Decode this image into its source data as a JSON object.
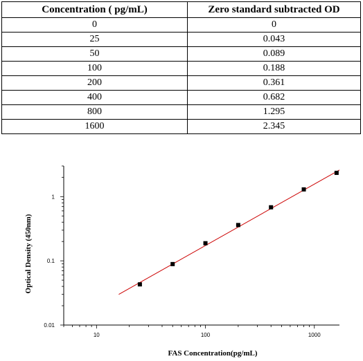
{
  "table": {
    "headers": [
      "Concentration ( pg/mL)",
      "Zero standard subtracted OD"
    ],
    "rows": [
      [
        "0",
        "0"
      ],
      [
        "25",
        "0.043"
      ],
      [
        "50",
        "0.089"
      ],
      [
        "100",
        "0.188"
      ],
      [
        "200",
        "0.361"
      ],
      [
        "400",
        "0.682"
      ],
      [
        "800",
        "1.295"
      ],
      [
        "1600",
        "2.345"
      ]
    ]
  },
  "chart_data": {
    "type": "scatter",
    "xlabel": "FAS  Concentration(pg/mL)",
    "ylabel": "Optical Density (450nm)",
    "x_scale": "log",
    "y_scale": "log",
    "xlim": [
      5,
      1700
    ],
    "ylim": [
      0.01,
      3
    ],
    "x_ticks": [
      {
        "value": 10,
        "label": "10"
      },
      {
        "value": 100,
        "label": "100"
      },
      {
        "value": 1000,
        "label": "1000"
      }
    ],
    "y_ticks": [
      {
        "value": 0.01,
        "label": "0.01"
      },
      {
        "value": 0.1,
        "label": "0.1"
      },
      {
        "value": 1,
        "label": "1"
      }
    ],
    "grid": false,
    "marker_color": "#000000",
    "fit_color": "#cc0000",
    "series": [
      {
        "x": [
          25,
          50,
          100,
          200,
          400,
          800,
          1600
        ],
        "y": [
          0.043,
          0.089,
          0.188,
          0.361,
          0.682,
          1.295,
          2.345
        ]
      }
    ],
    "fit_line": {
      "x": [
        16,
        1700
      ],
      "y": [
        0.03,
        2.6
      ]
    }
  }
}
